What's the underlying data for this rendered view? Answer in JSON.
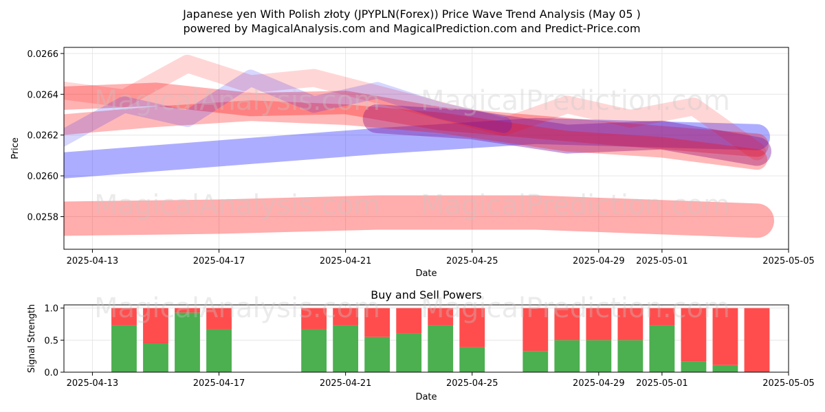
{
  "title_line1": "Japanese yen With Polish złoty (JPYPLN(Forex)) Price Wave Trend Analysis (May 05 )",
  "title_line2": "powered by MagicalAnalysis.com and MagicalPrediction.com and Predict-Price.com",
  "watermarks": [
    "MagicalAnalysis.com",
    "MagicalPrediction.com"
  ],
  "colors": {
    "red_band": "#ff0000",
    "blue_band": "#0000ff",
    "purple_band": "#7b1fa2",
    "buy": "#4caf50",
    "sell": "#ff4d4d",
    "grid": "#e6e6e6"
  },
  "chart_data": [
    {
      "type": "line",
      "title": "",
      "xlabel": "Date",
      "ylabel": "Price",
      "xlim": [
        "2025-04-12.1",
        "2025-05-05"
      ],
      "ylim": [
        0.02564,
        0.02663
      ],
      "x_ticks": [
        "2025-04-13",
        "2025-04-17",
        "2025-04-21",
        "2025-04-25",
        "2025-04-29",
        "2025-05-01",
        "2025-05-05"
      ],
      "y_ticks": [
        0.0258,
        0.026,
        0.0262,
        0.0264,
        0.0266
      ],
      "y_tick_labels": [
        "0.0258",
        "0.0260",
        "0.0262",
        "0.0264",
        "0.0266"
      ],
      "grid": true,
      "series": [
        {
          "color": "red",
          "x": [
            "2025-04-12",
            "2025-04-17",
            "2025-04-22",
            "2025-04-27",
            "2025-05-04"
          ],
          "y": [
            0.02579,
            0.0258,
            0.02582,
            0.02582,
            0.02578
          ]
        },
        {
          "color": "blue",
          "x": [
            "2025-04-12",
            "2025-04-17",
            "2025-04-22",
            "2025-04-27",
            "2025-05-04"
          ],
          "y": [
            0.02605,
            0.02611,
            0.02617,
            0.02622,
            0.02619
          ]
        },
        {
          "color": "red",
          "x": [
            "2025-04-12",
            "2025-04-15",
            "2025-04-18",
            "2025-04-21",
            "2025-04-24",
            "2025-04-27",
            "2025-04-30",
            "2025-05-04"
          ],
          "y": [
            0.02638,
            0.0264,
            0.02635,
            0.02636,
            0.02628,
            0.02624,
            0.0262,
            0.02615
          ]
        },
        {
          "color": "purple",
          "x": [
            "2025-04-22",
            "2025-04-25",
            "2025-04-28",
            "2025-05-01",
            "2025-05-04"
          ],
          "y": [
            0.02628,
            0.02625,
            0.02618,
            0.0262,
            0.02612
          ]
        },
        {
          "color": "red",
          "x": [
            "2025-04-12",
            "2025-04-15",
            "2025-04-18",
            "2025-04-21",
            "2025-04-24",
            "2025-04-28",
            "2025-05-01",
            "2025-05-04"
          ],
          "y": [
            0.02625,
            0.02629,
            0.02632,
            0.0263,
            0.02626,
            0.02617,
            0.02614,
            0.02608
          ]
        },
        {
          "color": "red",
          "x": [
            "2025-04-12",
            "2025-04-14",
            "2025-04-16",
            "2025-04-18",
            "2025-04-20",
            "2025-04-22",
            "2025-04-24",
            "2025-04-26",
            "2025-04-28",
            "2025-04-30",
            "2025-05-02",
            "2025-05-04"
          ],
          "y": [
            0.02642,
            0.02638,
            0.02655,
            0.02645,
            0.02648,
            0.0264,
            0.02632,
            0.02624,
            0.02635,
            0.02628,
            0.02634,
            0.02612
          ]
        },
        {
          "color": "blue",
          "x": [
            "2025-04-12",
            "2025-04-14",
            "2025-04-16",
            "2025-04-18",
            "2025-04-20",
            "2025-04-22",
            "2025-04-24",
            "2025-04-26"
          ],
          "y": [
            0.02618,
            0.02635,
            0.02628,
            0.02648,
            0.02635,
            0.02642,
            0.02632,
            0.02625
          ]
        }
      ]
    },
    {
      "type": "bar",
      "title": "Buy and Sell Powers",
      "xlabel": "Date",
      "ylabel": "Signal Strength",
      "ylim": [
        0,
        1.05
      ],
      "y_ticks": [
        0.0,
        0.5,
        1.0
      ],
      "y_tick_labels": [
        "0.0",
        "0.5",
        "1.0"
      ],
      "x_ticks": [
        "2025-04-13",
        "2025-04-17",
        "2025-04-21",
        "2025-04-25",
        "2025-04-29",
        "2025-05-01",
        "2025-05-05"
      ],
      "grid": true,
      "series": [
        {
          "name": "buy",
          "values": [
            0.73,
            0.45,
            0.93,
            0.67,
            0.67,
            0.73,
            0.55,
            0.61,
            0.73,
            0.39,
            0.33,
            0.5,
            0.5,
            0.5,
            0.73,
            0.17,
            0.11,
            0.0
          ]
        },
        {
          "name": "sell",
          "values": [
            0.27,
            0.55,
            0.07,
            0.33,
            0.33,
            0.27,
            0.45,
            0.39,
            0.27,
            0.61,
            0.67,
            0.5,
            0.5,
            0.5,
            0.27,
            0.83,
            0.89,
            1.0
          ]
        }
      ],
      "categories": [
        "2025-04-14",
        "2025-04-15",
        "2025-04-16",
        "2025-04-17",
        "2025-04-20",
        "2025-04-21",
        "2025-04-22",
        "2025-04-23",
        "2025-04-24",
        "2025-04-25",
        "2025-04-27",
        "2025-04-28",
        "2025-04-29",
        "2025-04-30",
        "2025-05-01",
        "2025-05-02",
        "2025-05-03",
        "2025-05-04"
      ]
    }
  ]
}
